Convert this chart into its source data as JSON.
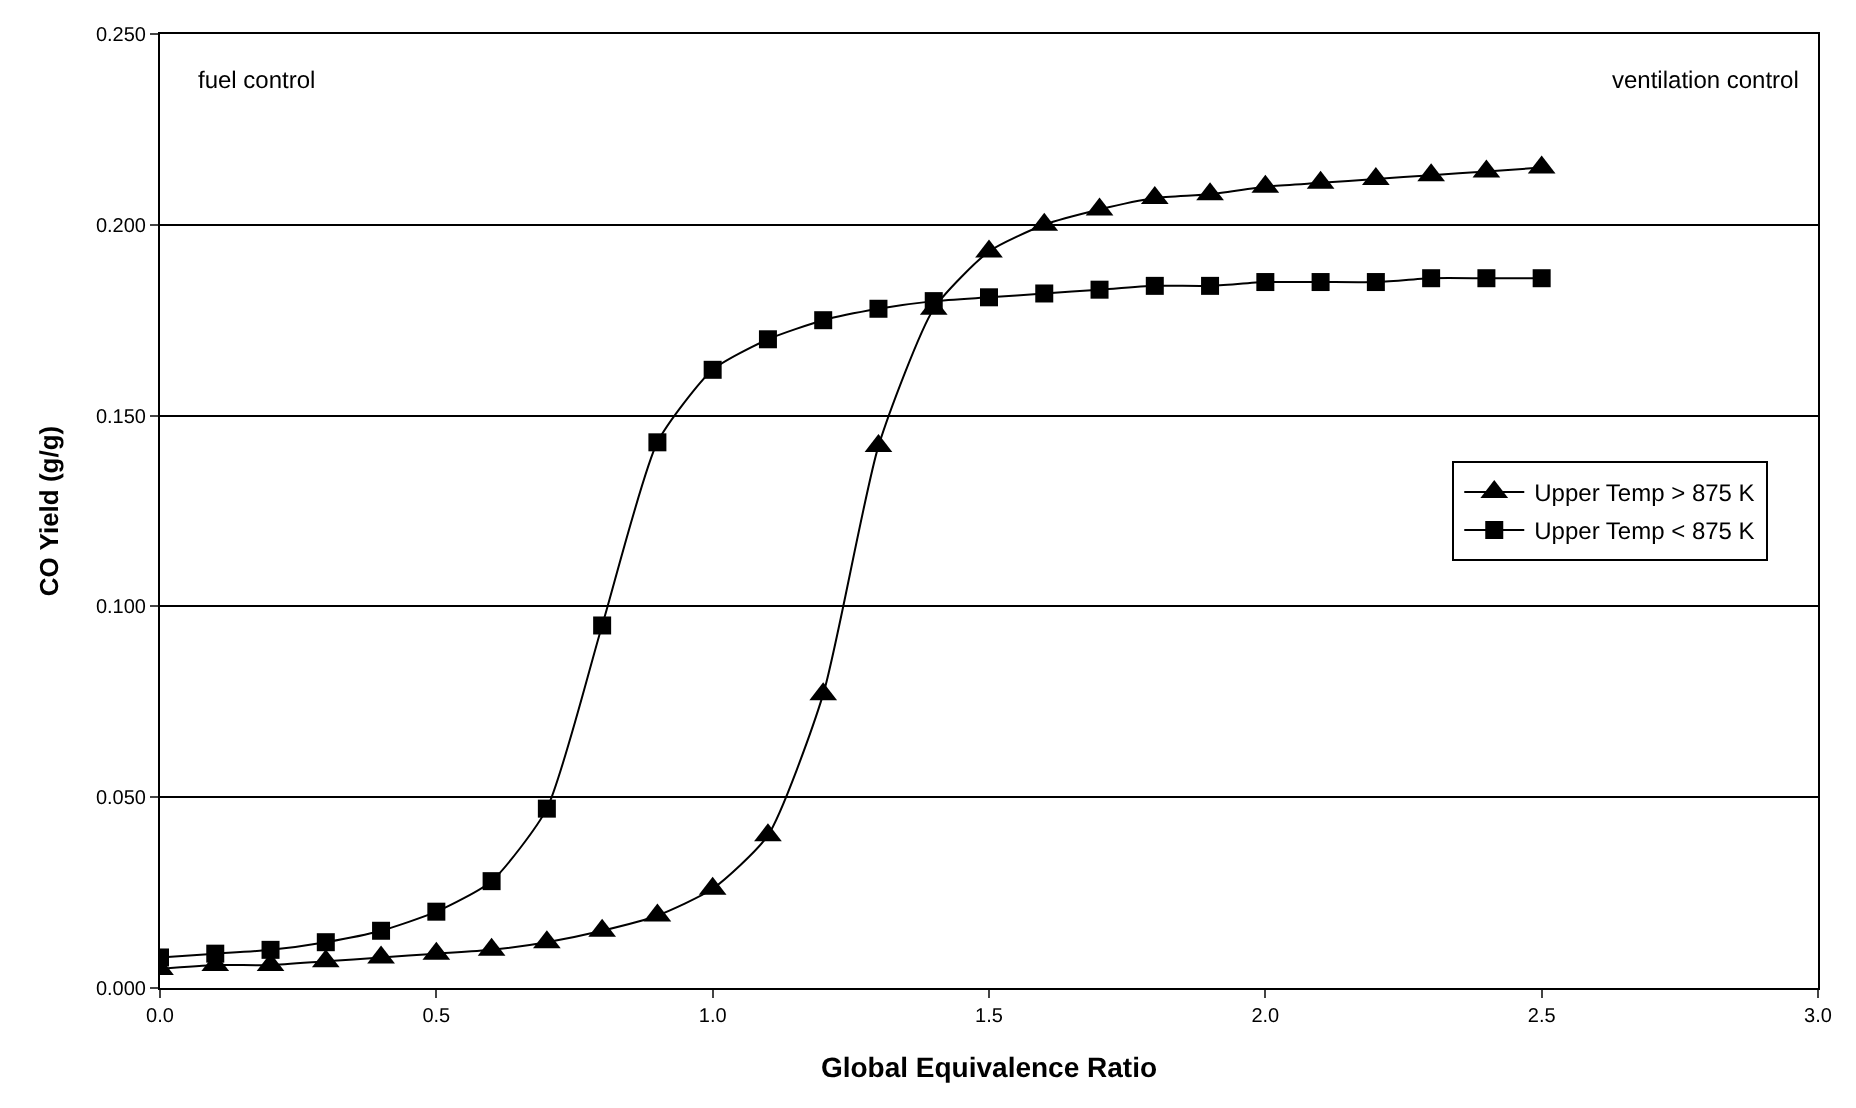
{
  "chart_data": {
    "type": "line",
    "xlabel": "Global Equivalence Ratio",
    "ylabel": "CO Yield (g/g)",
    "annotations": [
      "fuel control",
      "ventilation control"
    ],
    "x": [
      0.0,
      0.1,
      0.2,
      0.3,
      0.4,
      0.5,
      0.6,
      0.7,
      0.8,
      0.9,
      1.0,
      1.1,
      1.2,
      1.3,
      1.4,
      1.5,
      1.6,
      1.7,
      1.8,
      1.9,
      2.0,
      2.1,
      2.2,
      2.3,
      2.4,
      2.5
    ],
    "series": [
      {
        "name": "Upper Temp > 875 K",
        "color": "#000000",
        "marker": "triangle",
        "values": [
          0.005,
          0.006,
          0.006,
          0.007,
          0.008,
          0.009,
          0.01,
          0.012,
          0.015,
          0.019,
          0.026,
          0.04,
          0.077,
          0.142,
          0.178,
          0.193,
          0.2,
          0.204,
          0.207,
          0.208,
          0.21,
          0.211,
          0.212,
          0.213,
          0.214,
          0.215
        ]
      },
      {
        "name": "Upper Temp < 875 K",
        "color": "#000000",
        "marker": "square",
        "values": [
          0.008,
          0.009,
          0.01,
          0.012,
          0.015,
          0.02,
          0.028,
          0.047,
          0.095,
          0.143,
          0.162,
          0.17,
          0.175,
          0.178,
          0.18,
          0.181,
          0.182,
          0.183,
          0.184,
          0.184,
          0.185,
          0.185,
          0.185,
          0.186,
          0.186,
          0.186
        ]
      }
    ],
    "xlim": [
      0,
      3
    ],
    "ylim": [
      0,
      0.25
    ],
    "xticks": [
      {
        "value": 0,
        "label": "0.0"
      },
      0.5,
      {
        "value": 1,
        "label": "1.0"
      },
      1.5,
      {
        "value": 2,
        "label": "2.0"
      },
      2.5,
      {
        "value": 3,
        "label": "3.0"
      }
    ],
    "yticks": [
      {
        "value": 0,
        "label": "0.000"
      },
      {
        "value": 0.05,
        "label": "0.050"
      },
      {
        "value": 0.1,
        "label": "0.100"
      },
      {
        "value": 0.15,
        "label": "0.150"
      },
      {
        "value": 0.2,
        "label": "0.200"
      },
      {
        "value": 0.25,
        "label": "0.250"
      }
    ],
    "grid": "y",
    "legend": "right",
    "line_style": "solid"
  }
}
